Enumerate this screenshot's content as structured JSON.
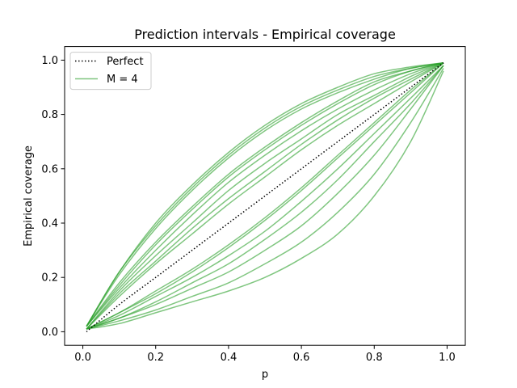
{
  "chart_data": {
    "type": "line",
    "title": "Prediction intervals - Empirical coverage",
    "xlabel": "p",
    "ylabel": "Empirical coverage",
    "xlim": [
      -0.05,
      1.05
    ],
    "ylim": [
      -0.05,
      1.05
    ],
    "xticks": [
      0.0,
      0.2,
      0.4,
      0.6,
      0.8,
      1.0
    ],
    "yticks": [
      0.0,
      0.2,
      0.4,
      0.6,
      0.8,
      1.0
    ],
    "xtick_labels": [
      "0.0",
      "0.2",
      "0.4",
      "0.6",
      "0.8",
      "1.0"
    ],
    "ytick_labels": [
      "0.0",
      "0.2",
      "0.4",
      "0.6",
      "0.8",
      "1.0"
    ],
    "grid": false,
    "legend": {
      "placement": "upper-left",
      "entries": [
        {
          "label": "Perfect",
          "style": "dotted",
          "color": "#000000"
        },
        {
          "label": "M = 4",
          "style": "solid",
          "color": "#2ca02c"
        }
      ]
    },
    "x": [
      0.01,
      0.1,
      0.2,
      0.3,
      0.4,
      0.5,
      0.6,
      0.7,
      0.8,
      0.9,
      0.99
    ],
    "series": [
      {
        "name": "Perfect",
        "color": "#000000",
        "dash": "dotted",
        "values": [
          0.0,
          0.1,
          0.2,
          0.3,
          0.4,
          0.5,
          0.6,
          0.7,
          0.8,
          0.9,
          0.99
        ]
      },
      {
        "color": "#2ca02c",
        "alpha": 0.6,
        "values": [
          0.02,
          0.22,
          0.4,
          0.54,
          0.66,
          0.76,
          0.84,
          0.9,
          0.95,
          0.975,
          0.99
        ]
      },
      {
        "color": "#2ca02c",
        "alpha": 0.6,
        "values": [
          0.02,
          0.22,
          0.39,
          0.53,
          0.65,
          0.75,
          0.83,
          0.89,
          0.94,
          0.97,
          0.99
        ]
      },
      {
        "color": "#2ca02c",
        "alpha": 0.6,
        "values": [
          0.02,
          0.21,
          0.38,
          0.52,
          0.64,
          0.74,
          0.82,
          0.88,
          0.93,
          0.97,
          0.99
        ]
      },
      {
        "color": "#2ca02c",
        "alpha": 0.6,
        "values": [
          0.02,
          0.18,
          0.33,
          0.46,
          0.58,
          0.68,
          0.77,
          0.85,
          0.92,
          0.96,
          0.99
        ]
      },
      {
        "color": "#2ca02c",
        "alpha": 0.6,
        "values": [
          0.02,
          0.17,
          0.32,
          0.45,
          0.57,
          0.67,
          0.76,
          0.84,
          0.91,
          0.96,
          0.99
        ]
      },
      {
        "color": "#2ca02c",
        "alpha": 0.6,
        "values": [
          0.02,
          0.16,
          0.3,
          0.43,
          0.55,
          0.65,
          0.74,
          0.82,
          0.89,
          0.95,
          0.99
        ]
      },
      {
        "color": "#2ca02c",
        "alpha": 0.6,
        "values": [
          0.01,
          0.15,
          0.28,
          0.4,
          0.52,
          0.62,
          0.71,
          0.8,
          0.87,
          0.94,
          0.99
        ]
      },
      {
        "color": "#2ca02c",
        "alpha": 0.6,
        "values": [
          0.01,
          0.14,
          0.26,
          0.38,
          0.49,
          0.59,
          0.69,
          0.78,
          0.86,
          0.93,
          0.99
        ]
      },
      {
        "color": "#2ca02c",
        "alpha": 0.6,
        "values": [
          0.01,
          0.13,
          0.25,
          0.36,
          0.47,
          0.57,
          0.67,
          0.76,
          0.84,
          0.92,
          0.99
        ]
      },
      {
        "color": "#2ca02c",
        "alpha": 0.6,
        "values": [
          0.01,
          0.07,
          0.15,
          0.23,
          0.32,
          0.42,
          0.53,
          0.65,
          0.77,
          0.89,
          0.99
        ]
      },
      {
        "color": "#2ca02c",
        "alpha": 0.6,
        "values": [
          0.01,
          0.07,
          0.14,
          0.22,
          0.31,
          0.41,
          0.52,
          0.64,
          0.76,
          0.88,
          0.99
        ]
      },
      {
        "color": "#2ca02c",
        "alpha": 0.6,
        "values": [
          0.01,
          0.06,
          0.13,
          0.2,
          0.28,
          0.37,
          0.48,
          0.6,
          0.73,
          0.86,
          0.98
        ]
      },
      {
        "color": "#2ca02c",
        "alpha": 0.6,
        "values": [
          0.01,
          0.05,
          0.11,
          0.18,
          0.25,
          0.34,
          0.44,
          0.56,
          0.7,
          0.84,
          0.98
        ]
      },
      {
        "color": "#2ca02c",
        "alpha": 0.6,
        "values": [
          0.01,
          0.05,
          0.1,
          0.16,
          0.22,
          0.3,
          0.39,
          0.51,
          0.65,
          0.82,
          0.98
        ]
      },
      {
        "color": "#2ca02c",
        "alpha": 0.6,
        "values": [
          0.01,
          0.04,
          0.08,
          0.13,
          0.18,
          0.25,
          0.33,
          0.44,
          0.58,
          0.77,
          0.97
        ]
      },
      {
        "color": "#2ca02c",
        "alpha": 0.6,
        "values": [
          0.01,
          0.03,
          0.07,
          0.11,
          0.15,
          0.2,
          0.27,
          0.36,
          0.5,
          0.7,
          0.96
        ]
      }
    ]
  }
}
